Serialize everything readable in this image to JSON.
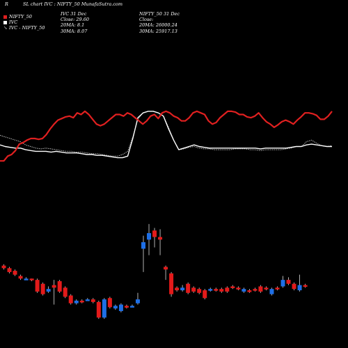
{
  "header": {
    "corner": "R",
    "title": "SL  chart IVC : NIFTY_50  MunafaSutra.com"
  },
  "legend": [
    {
      "label": "NIFTY_50",
      "color": "#e02020",
      "marker": "square"
    },
    {
      "label": "IVC",
      "color": "#ffffff",
      "marker": "square"
    },
    {
      "label": "IVC - NIFTY_50",
      "color": "#bbbbbb",
      "marker": "arrow"
    }
  ],
  "info_ivc": [
    "IVC 31 Dec",
    "Close: 29.60",
    "20MA: 8.1",
    "30MA: 8.07"
  ],
  "info_nifty": [
    "NIFTY_50  31 Dec",
    "Close:",
    "20MA: 26000.24",
    "30MA: 25917.13"
  ],
  "colors": {
    "background": "#000000",
    "up": "#1e6fe6",
    "down": "#e31a1a",
    "nifty_line": "#e02020",
    "ivc_line": "#ffffff",
    "diff_line": "#bbbbbb"
  },
  "chart_data": {
    "type": "candlestick+line",
    "note_scale": "relative price index 0-100 (no axis printed)",
    "candles": [
      {
        "o": 32,
        "c": 30,
        "h": 33,
        "l": 29
      },
      {
        "o": 30,
        "c": 27,
        "h": 31,
        "l": 26
      },
      {
        "o": 28,
        "c": 25,
        "h": 29,
        "l": 24
      },
      {
        "o": 24,
        "c": 22,
        "h": 25,
        "l": 21
      },
      {
        "o": 22,
        "c": 22,
        "h": 23,
        "l": 21
      },
      {
        "o": 22,
        "c": 21,
        "h": 22,
        "l": 20
      },
      {
        "o": 21,
        "c": 12,
        "h": 22,
        "l": 11
      },
      {
        "o": 18,
        "c": 10,
        "h": 19,
        "l": 9
      },
      {
        "o": 12,
        "c": 14,
        "h": 16,
        "l": 11
      },
      {
        "o": 17,
        "c": 15,
        "h": 21,
        "l": 2
      },
      {
        "o": 20,
        "c": 12,
        "h": 21,
        "l": 11
      },
      {
        "o": 15,
        "c": 8,
        "h": 16,
        "l": 7
      },
      {
        "o": 9,
        "c": 3,
        "h": 10,
        "l": 2
      },
      {
        "o": 3,
        "c": 5,
        "h": 6,
        "l": 2
      },
      {
        "o": 5,
        "c": 4,
        "h": 6,
        "l": 3
      },
      {
        "o": 6,
        "c": 6,
        "h": 7,
        "l": 5
      },
      {
        "o": 6,
        "c": 4,
        "h": 7,
        "l": 3
      },
      {
        "o": 4,
        "c": -8,
        "h": 5,
        "l": -9
      },
      {
        "o": -8,
        "c": 6,
        "h": 7,
        "l": -9
      },
      {
        "o": 7,
        "c": 0,
        "h": 8,
        "l": -1
      },
      {
        "o": -1,
        "c": 1,
        "h": 2,
        "l": -2
      },
      {
        "o": -3,
        "c": 2,
        "h": 3,
        "l": -4
      },
      {
        "o": 1,
        "c": 0,
        "h": 2,
        "l": -1
      },
      {
        "o": 1,
        "c": 1,
        "h": 2,
        "l": 0
      },
      {
        "o": 3,
        "c": 6,
        "h": 11,
        "l": 2
      },
      {
        "o": 45,
        "c": 50,
        "h": 55,
        "l": 27
      },
      {
        "o": 52,
        "c": 57,
        "h": 64,
        "l": 40
      },
      {
        "o": 59,
        "c": 54,
        "h": 61,
        "l": 46
      },
      {
        "o": 54,
        "c": 52,
        "h": 60,
        "l": 40
      },
      {
        "o": 31,
        "c": 29,
        "h": 32,
        "l": 21
      },
      {
        "o": 26,
        "c": 10,
        "h": 27,
        "l": 8
      },
      {
        "o": 15,
        "c": 13,
        "h": 16,
        "l": 12
      },
      {
        "o": 13,
        "c": 15,
        "h": 17,
        "l": 12
      },
      {
        "o": 18,
        "c": 11,
        "h": 19,
        "l": 10
      },
      {
        "o": 15,
        "c": 12,
        "h": 16,
        "l": 11
      },
      {
        "o": 14,
        "c": 11,
        "h": 15,
        "l": 10
      },
      {
        "o": 13,
        "c": 7,
        "h": 14,
        "l": 6
      },
      {
        "o": 13,
        "c": 14,
        "h": 15,
        "l": 12
      },
      {
        "o": 14,
        "c": 13,
        "h": 15,
        "l": 12
      },
      {
        "o": 14,
        "c": 12,
        "h": 15,
        "l": 11
      },
      {
        "o": 15,
        "c": 12,
        "h": 16,
        "l": 11
      },
      {
        "o": 16,
        "c": 15,
        "h": 17,
        "l": 14
      },
      {
        "o": 15,
        "c": 14,
        "h": 16,
        "l": 13
      },
      {
        "o": 12,
        "c": 14,
        "h": 15,
        "l": 11
      },
      {
        "o": 13,
        "c": 12,
        "h": 14,
        "l": 11
      },
      {
        "o": 14,
        "c": 13,
        "h": 15,
        "l": 12
      },
      {
        "o": 16,
        "c": 12,
        "h": 17,
        "l": 11
      },
      {
        "o": 15,
        "c": 14,
        "h": 16,
        "l": 13
      },
      {
        "o": 10,
        "c": 14,
        "h": 15,
        "l": 9
      },
      {
        "o": 15,
        "c": 14,
        "h": 16,
        "l": 13
      },
      {
        "o": 16,
        "c": 21,
        "h": 24,
        "l": 15
      },
      {
        "o": 21,
        "c": 18,
        "h": 23,
        "l": 17
      },
      {
        "o": 18,
        "c": 14,
        "h": 19,
        "l": 13
      },
      {
        "o": 13,
        "c": 17,
        "h": 25,
        "l": 12
      },
      {
        "o": 17,
        "c": 16,
        "h": 18,
        "l": 15
      }
    ],
    "series": [
      {
        "name": "NIFTY_50",
        "values": [
          12,
          12,
          18,
          20,
          25,
          33,
          35,
          38,
          40,
          40,
          39,
          40,
          45,
          52,
          58,
          63,
          65,
          67,
          68,
          66,
          72,
          70,
          74,
          70,
          64,
          58,
          56,
          58,
          62,
          66,
          70,
          70,
          68,
          72,
          70,
          66,
          62,
          58,
          62,
          68,
          70,
          65,
          72,
          74,
          72,
          68,
          66,
          62,
          62,
          66,
          72,
          74,
          72,
          70,
          62,
          58,
          60,
          66,
          70,
          74,
          74,
          73,
          70,
          70,
          67,
          66,
          68,
          72,
          66,
          61,
          58,
          54,
          57,
          61,
          63,
          61,
          58,
          63,
          67,
          72,
          72,
          71,
          69,
          64,
          64,
          68,
          74
        ]
      },
      {
        "name": "IVC",
        "values": [
          32,
          30,
          29,
          28,
          28,
          26,
          25,
          24,
          24,
          24,
          23,
          24,
          23,
          22,
          22,
          22,
          21,
          20,
          20,
          19,
          19,
          18,
          17,
          16,
          16,
          18,
          40,
          66,
          72,
          74,
          74,
          72,
          68,
          52,
          38,
          26,
          28,
          30,
          32,
          30,
          29,
          28,
          28,
          28,
          28,
          28,
          28,
          28,
          28,
          28,
          28,
          27,
          28,
          28,
          28,
          28,
          28,
          29,
          30,
          30,
          32,
          33,
          32,
          31,
          30,
          30
        ]
      },
      {
        "name": "IVC - NIFTY_50",
        "values": [
          44,
          42,
          40,
          38,
          36,
          32,
          30,
          28,
          27,
          28,
          27,
          26,
          25,
          24,
          24,
          23,
          23,
          22,
          21,
          21,
          20,
          19,
          18,
          18,
          20,
          24,
          42,
          64,
          72,
          74,
          74,
          72,
          68,
          54,
          38,
          26,
          27,
          29,
          30,
          28,
          27,
          27,
          26,
          26,
          26,
          26,
          27,
          27,
          27,
          26,
          26,
          25,
          26,
          26,
          26,
          26,
          27,
          28,
          30,
          30,
          36,
          38,
          34,
          31,
          30,
          31
        ]
      }
    ]
  }
}
